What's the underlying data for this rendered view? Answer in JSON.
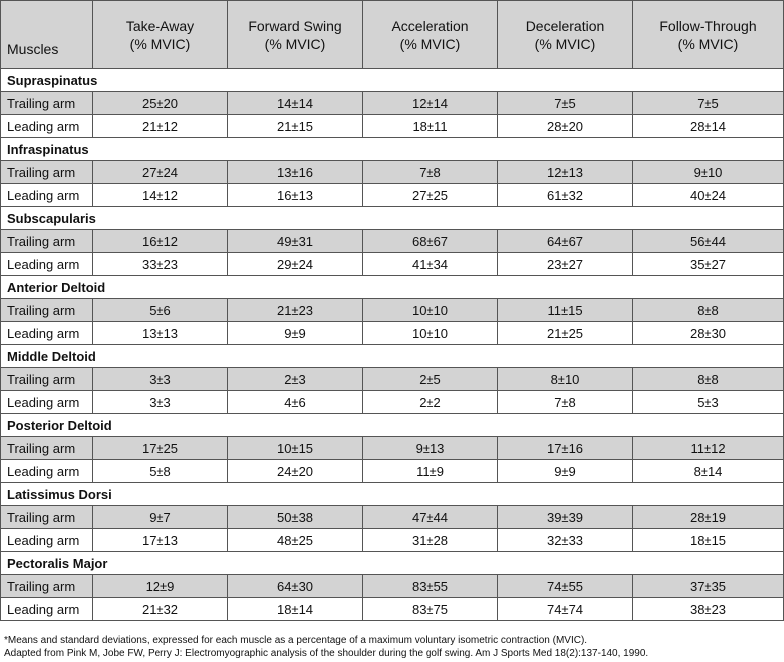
{
  "table": {
    "headers": [
      {
        "line1": "Muscles",
        "line2": ""
      },
      {
        "line1": "Take-Away",
        "line2": "(% MVIC)"
      },
      {
        "line1": "Forward Swing",
        "line2": "(% MVIC)"
      },
      {
        "line1": "Acceleration",
        "line2": "(% MVIC)"
      },
      {
        "line1": "Deceleration",
        "line2": "(% MVIC)"
      },
      {
        "line1": "Follow-Through",
        "line2": "(% MVIC)"
      }
    ],
    "groups": [
      {
        "muscle": "Supraspinatus",
        "rows": [
          {
            "arm": "Trailing arm",
            "values": [
              "25±20",
              "14±14",
              "12±14",
              "7±5",
              "7±5"
            ]
          },
          {
            "arm": "Leading arm",
            "values": [
              "21±12",
              "21±15",
              "18±11",
              "28±20",
              "28±14"
            ]
          }
        ]
      },
      {
        "muscle": "Infraspinatus",
        "rows": [
          {
            "arm": "Trailing arm",
            "values": [
              "27±24",
              "13±16",
              "7±8",
              "12±13",
              "9±10"
            ]
          },
          {
            "arm": "Leading arm",
            "values": [
              "14±12",
              "16±13",
              "27±25",
              "61±32",
              "40±24"
            ]
          }
        ]
      },
      {
        "muscle": "Subscapularis",
        "rows": [
          {
            "arm": "Trailing arm",
            "values": [
              "16±12",
              "49±31",
              "68±67",
              "64±67",
              "56±44"
            ]
          },
          {
            "arm": "Leading arm",
            "values": [
              "33±23",
              "29±24",
              "41±34",
              "23±27",
              "35±27"
            ]
          }
        ]
      },
      {
        "muscle": "Anterior Deltoid",
        "rows": [
          {
            "arm": "Trailing arm",
            "values": [
              "5±6",
              "21±23",
              "10±10",
              "11±15",
              "8±8"
            ]
          },
          {
            "arm": "Leading arm",
            "values": [
              "13±13",
              "9±9",
              "10±10",
              "21±25",
              "28±30"
            ]
          }
        ]
      },
      {
        "muscle": "Middle Deltoid",
        "rows": [
          {
            "arm": "Trailing arm",
            "values": [
              "3±3",
              "2±3",
              "2±5",
              "8±10",
              "8±8"
            ]
          },
          {
            "arm": "Leading arm",
            "values": [
              "3±3",
              "4±6",
              "2±2",
              "7±8",
              "5±3"
            ]
          }
        ]
      },
      {
        "muscle": "Posterior Deltoid",
        "rows": [
          {
            "arm": "Trailing arm",
            "values": [
              "17±25",
              "10±15",
              "9±13",
              "17±16",
              "11±12"
            ]
          },
          {
            "arm": "Leading arm",
            "values": [
              "5±8",
              "24±20",
              "11±9",
              "9±9",
              "8±14"
            ]
          }
        ]
      },
      {
        "muscle": "Latissimus Dorsi",
        "rows": [
          {
            "arm": "Trailing arm",
            "values": [
              "9±7",
              "50±38",
              "47±44",
              "39±39",
              "28±19"
            ]
          },
          {
            "arm": "Leading arm",
            "values": [
              "17±13",
              "48±25",
              "31±28",
              "32±33",
              "18±15"
            ]
          }
        ]
      },
      {
        "muscle": "Pectoralis Major",
        "rows": [
          {
            "arm": "Trailing arm",
            "values": [
              "12±9",
              "64±30",
              "83±55",
              "74±55",
              "37±35"
            ]
          },
          {
            "arm": "Leading arm",
            "values": [
              "21±32",
              "18±14",
              "83±75",
              "74±74",
              "38±23"
            ]
          }
        ]
      }
    ]
  },
  "footnotes": {
    "line1": "*Means and standard deviations, expressed for each muscle as a percentage of a maximum voluntary isometric contraction (MVIC).",
    "line2": "Adapted from Pink M, Jobe FW, Perry J: Electromyographic analysis of the shoulder during the golf swing. Am J Sports Med 18(2):137-140, 1990."
  },
  "colors": {
    "header_bg": "#d3d3d3",
    "trailing_row_bg": "#d3d3d3",
    "leading_row_bg": "#ffffff",
    "border": "#555555"
  }
}
